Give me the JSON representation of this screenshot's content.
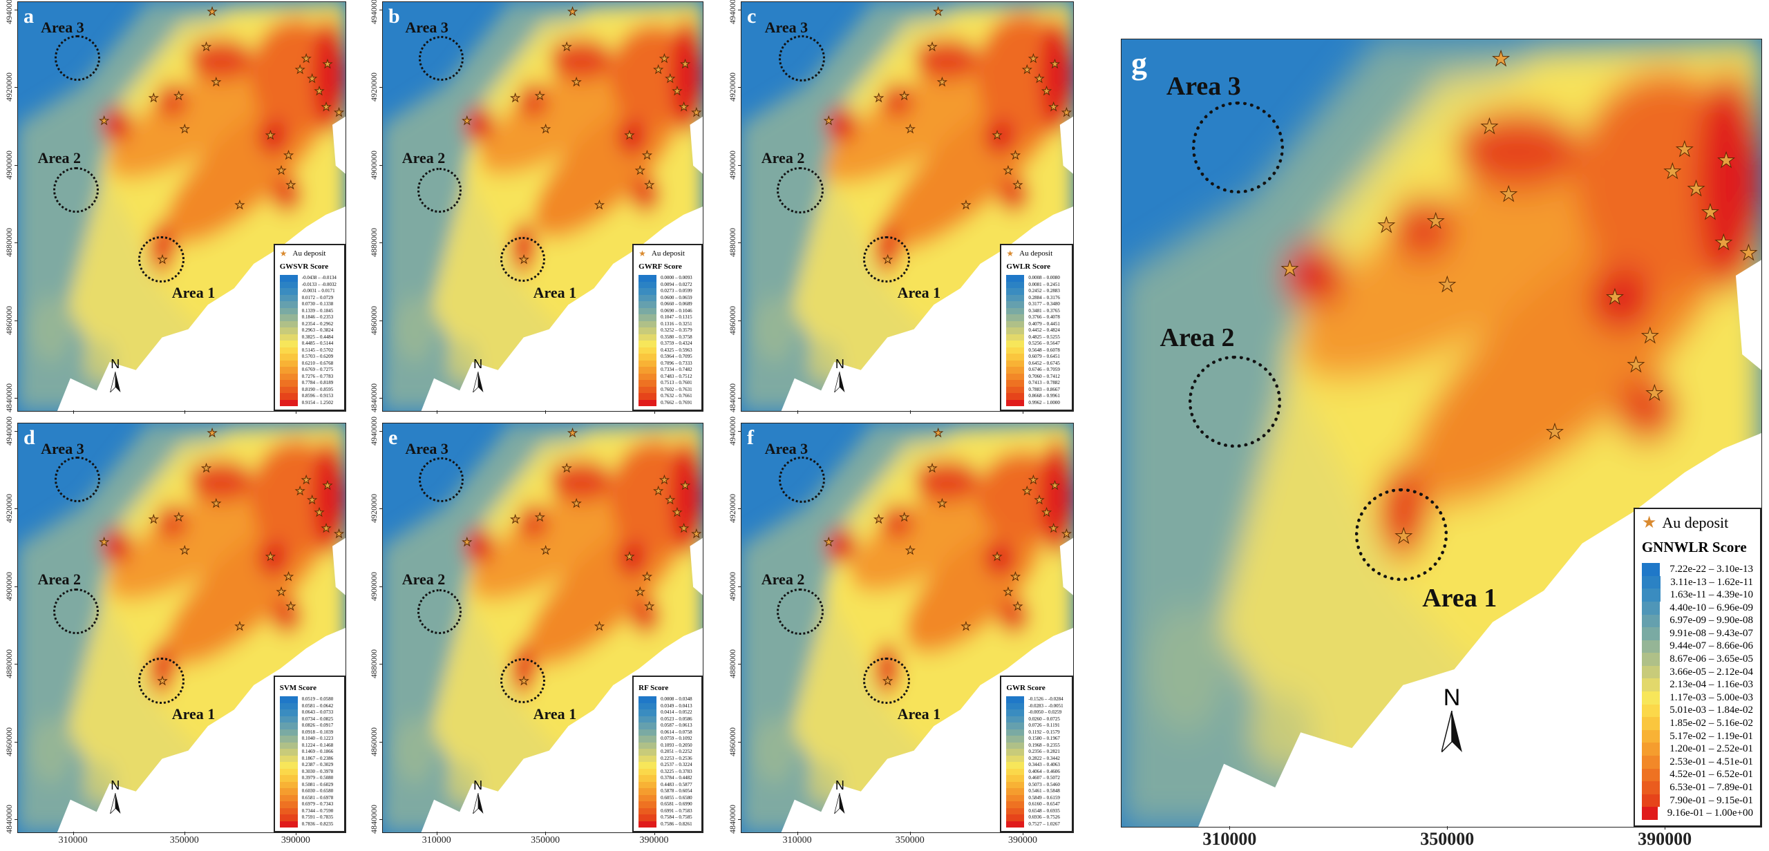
{
  "deposit_label": "Au deposit",
  "area_labels": [
    "Area 1",
    "Area 2",
    "Area 3"
  ],
  "x_ticks": [
    "310000",
    "350000",
    "390000"
  ],
  "y_ticks": [
    "4840000",
    "4860000",
    "4880000",
    "4900000",
    "4920000",
    "4940000"
  ],
  "north_label": "N",
  "palette": [
    "#1f78c8",
    "#2b82c4",
    "#3a8cc0",
    "#4f96b8",
    "#65a0ae",
    "#7aaaa3",
    "#95b596",
    "#afc088",
    "#c8cb7a",
    "#e2d86b",
    "#f7e65a",
    "#fbd84a",
    "#fac63e",
    "#f8b235",
    "#f59d2e",
    "#f28828",
    "#ee7222",
    "#ea5c1e",
    "#e6441a",
    "#e01b1b"
  ],
  "panels": [
    {
      "letter": "a",
      "score_title": "GWSVR Score",
      "legend": [
        "-0.0438 – -0.0134",
        "-0.0133 – -0.0032",
        "-0.0031 – 0.0171",
        "0.0172 – 0.0729",
        "0.0730 – 0.1338",
        "0.1339 – 0.1845",
        "0.1846 – 0.2353",
        "0.2354 – 0.2962",
        "0.2963 – 0.3824",
        "0.3825 – 0.4484",
        "0.4485 – 0.5144",
        "0.5145 – 0.5702",
        "0.5703 – 0.6209",
        "0.6210 – 0.6768",
        "0.6769 – 0.7275",
        "0.7276 – 0.7783",
        "0.7784 – 0.8189",
        "0.8190 – 0.8595",
        "0.8596 – 0.9153",
        "0.9154 – 1.2502"
      ]
    },
    {
      "letter": "b",
      "score_title": "GWRF Score",
      "legend": [
        "0.0000 – 0.0093",
        "0.0094 – 0.0272",
        "0.0273 – 0.0599",
        "0.0600 – 0.0659",
        "0.0660 – 0.0689",
        "0.0690 – 0.1046",
        "0.1047 – 0.1315",
        "0.1316 – 0.3251",
        "0.3252 – 0.3579",
        "0.3580 – 0.3758",
        "0.3759 – 0.4324",
        "0.4325 – 0.5963",
        "0.5964 – 0.7095",
        "0.7096 – 0.7333",
        "0.7334 – 0.7482",
        "0.7483 – 0.7512",
        "0.7513 – 0.7601",
        "0.7602 – 0.7631",
        "0.7632 – 0.7661",
        "0.7662 – 0.7691"
      ]
    },
    {
      "letter": "c",
      "score_title": "GWLR Score",
      "legend": [
        "0.0008 – 0.0080",
        "0.0081 – 0.2451",
        "0.2452 – 0.2883",
        "0.2884 – 0.3176",
        "0.3177 – 0.3480",
        "0.3481 – 0.3765",
        "0.3766 – 0.4078",
        "0.4079 – 0.4451",
        "0.4452 – 0.4824",
        "0.4825 – 0.5255",
        "0.5256 – 0.5647",
        "0.5648 – 0.6078",
        "0.6079 – 0.6451",
        "0.6452 – 0.6745",
        "0.6746 – 0.7059",
        "0.7060 – 0.7412",
        "0.7413 – 0.7882",
        "0.7883 – 0.8667",
        "0.8668 – 0.9961",
        "0.9962 – 1.0000"
      ]
    },
    {
      "letter": "d",
      "score_title": "SVM Score",
      "legend": [
        "0.0519 – 0.0580",
        "0.0581 – 0.0642",
        "0.0643 – 0.0733",
        "0.0734 – 0.0825",
        "0.0826 – 0.0917",
        "0.0918 – 0.1039",
        "0.1040 – 0.1223",
        "0.1224 – 0.1468",
        "0.1469 – 0.1866",
        "0.1867 – 0.2386",
        "0.2387 – 0.3029",
        "0.3030 – 0.3978",
        "0.3979 – 0.5080",
        "0.5081 – 0.6029",
        "0.6030 – 0.6580",
        "0.6581 – 0.6978",
        "0.6979 – 0.7343",
        "0.7344 – 0.7590",
        "0.7591 – 0.7835",
        "0.7836 – 0.8235"
      ]
    },
    {
      "letter": "e",
      "score_title": "RF Score",
      "legend": [
        "0.0008 – 0.0348",
        "0.0349 – 0.0413",
        "0.0414 – 0.0522",
        "0.0523 – 0.0586",
        "0.0587 – 0.0613",
        "0.0614 – 0.0758",
        "0.0759 – 0.1092",
        "0.1093 – 0.2050",
        "0.2051 – 0.2252",
        "0.2253 – 0.2536",
        "0.2537 – 0.3224",
        "0.3225 – 0.3783",
        "0.3784 – 0.4482",
        "0.4483 – 0.5877",
        "0.5878 – 0.6054",
        "0.6055 – 0.6580",
        "0.6581 – 0.6990",
        "0.6991 – 0.7583",
        "0.7584 – 0.7585",
        "0.7586 – 0.8261"
      ]
    },
    {
      "letter": "f",
      "score_title": "GWR Score",
      "legend": [
        "-0.1526 – -0.0284",
        "-0.0283 – -0.0051",
        "-0.0050 – 0.0259",
        "0.0260 – 0.0725",
        "0.0726 – 0.1191",
        "0.1192 – 0.1579",
        "0.1580 – 0.1967",
        "0.1968 – 0.2355",
        "0.2356 – 0.2821",
        "0.2822 – 0.3442",
        "0.3443 – 0.4063",
        "0.4064 – 0.4606",
        "0.4607 – 0.5072",
        "0.5073 – 0.5460",
        "0.5461 – 0.5848",
        "0.5849 – 0.6159",
        "0.6160 – 0.6547",
        "0.6548 – 0.6935",
        "0.6936 – 0.7526",
        "0.7527 – 1.0267"
      ]
    },
    {
      "letter": "g",
      "score_title": "GNNWLR Score",
      "legend": [
        "7.22e-22 – 3.10e-13",
        "3.11e-13 – 1.62e-11",
        "1.63e-11 – 4.39e-10",
        "4.40e-10 – 6.96e-09",
        "6.97e-09 – 9.90e-08",
        "9.91e-08 – 9.43e-07",
        "9.44e-07 – 8.66e-06",
        "8.67e-06 – 3.65e-05",
        "3.66e-05 – 2.12e-04",
        "2.13e-04 – 1.16e-03",
        "1.17e-03 – 5.00e-03",
        "5.01e-03 – 1.84e-02",
        "1.85e-02 – 5.16e-02",
        "5.17e-02 – 1.19e-01",
        "1.20e-01 – 2.52e-01",
        "2.53e-01 – 4.51e-01",
        "4.52e-01 – 6.52e-01",
        "6.53e-01 – 7.89e-01",
        "7.90e-01 – 9.15e-01",
        "9.16e-01 – 1.00e+00"
      ]
    }
  ]
}
